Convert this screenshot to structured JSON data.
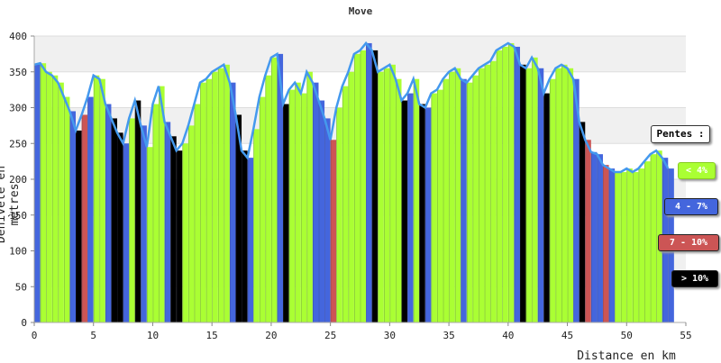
{
  "chart_data": {
    "type": "area",
    "title": "Move",
    "xlabel": "Distance en km",
    "ylabel": "Dénivelé en mètres",
    "xlim": [
      0,
      55
    ],
    "ylim": [
      0,
      400
    ],
    "xticks": [
      0,
      5,
      10,
      15,
      20,
      25,
      30,
      35,
      40,
      45,
      50,
      55
    ],
    "yticks": [
      0,
      50,
      100,
      150,
      200,
      250,
      300,
      350,
      400
    ],
    "grid": true,
    "legend_position": "right",
    "legend_title": "Pentes :",
    "legend": [
      {
        "label": "< 4%",
        "color": "#aaff33"
      },
      {
        "label": "4 - 7%",
        "color": "#4466dd"
      },
      {
        "label": "7 - 10%",
        "color": "#cc5555"
      },
      {
        "label": "> 10%",
        "color": "#000000"
      }
    ],
    "profile": {
      "x": [
        0,
        0.5,
        1,
        1.5,
        2,
        2.5,
        3,
        3.5,
        4,
        4.5,
        5,
        5.5,
        6,
        6.5,
        7,
        7.5,
        8,
        8.5,
        9,
        9.5,
        10,
        10.5,
        11,
        11.5,
        12,
        12.5,
        13,
        13.5,
        14,
        14.5,
        15,
        15.5,
        16,
        16.5,
        17,
        17.5,
        18,
        18.5,
        19,
        19.5,
        20,
        20.5,
        21,
        21.5,
        22,
        22.5,
        23,
        23.5,
        24,
        24.5,
        25,
        25.5,
        26,
        26.5,
        27,
        27.5,
        28,
        28.5,
        29,
        29.5,
        30,
        30.5,
        31,
        31.5,
        32,
        32.5,
        33,
        33.5,
        34,
        34.5,
        35,
        35.5,
        36,
        36.5,
        37,
        37.5,
        38,
        38.5,
        39,
        39.5,
        40,
        40.5,
        41,
        41.5,
        42,
        42.5,
        43,
        43.5,
        44,
        44.5,
        45,
        45.5,
        46,
        46.5,
        47,
        47.5,
        48,
        48.5,
        49,
        49.5,
        50,
        50.5,
        51,
        51.5,
        52,
        52.5,
        53,
        53.5
      ],
      "y": [
        360,
        362,
        350,
        345,
        335,
        315,
        295,
        268,
        290,
        315,
        345,
        340,
        305,
        285,
        265,
        250,
        285,
        310,
        275,
        245,
        305,
        330,
        280,
        260,
        240,
        250,
        275,
        305,
        335,
        340,
        350,
        355,
        360,
        335,
        290,
        240,
        230,
        270,
        315,
        345,
        370,
        375,
        305,
        325,
        335,
        320,
        350,
        335,
        310,
        285,
        255,
        300,
        330,
        350,
        375,
        380,
        390,
        380,
        350,
        355,
        360,
        340,
        310,
        320,
        340,
        305,
        300,
        320,
        325,
        340,
        350,
        355,
        340,
        335,
        345,
        355,
        360,
        365,
        380,
        385,
        390,
        385,
        360,
        355,
        370,
        355,
        320,
        340,
        355,
        360,
        355,
        340,
        280,
        255,
        238,
        235,
        220,
        215,
        210,
        210,
        215,
        210,
        215,
        225,
        235,
        240,
        230,
        215
      ]
    },
    "slopes": [
      1,
      0,
      0,
      0,
      0,
      0,
      1,
      3,
      2,
      1,
      0,
      0,
      1,
      3,
      3,
      1,
      0,
      3,
      1,
      0,
      0,
      0,
      1,
      3,
      3,
      0,
      0,
      0,
      0,
      0,
      0,
      0,
      0,
      1,
      3,
      3,
      1,
      0,
      0,
      0,
      0,
      1,
      3,
      0,
      0,
      0,
      0,
      1,
      1,
      1,
      2,
      0,
      0,
      0,
      0,
      0,
      1,
      3,
      0,
      0,
      0,
      0,
      3,
      1,
      0,
      3,
      1,
      0,
      0,
      0,
      0,
      0,
      1,
      0,
      0,
      0,
      0,
      0,
      0,
      0,
      0,
      1,
      3,
      0,
      0,
      1,
      3,
      0,
      0,
      0,
      0,
      1,
      3,
      2,
      1,
      1,
      2,
      1,
      0,
      0,
      0,
      0,
      0,
      0,
      0,
      0,
      1,
      1
    ]
  }
}
